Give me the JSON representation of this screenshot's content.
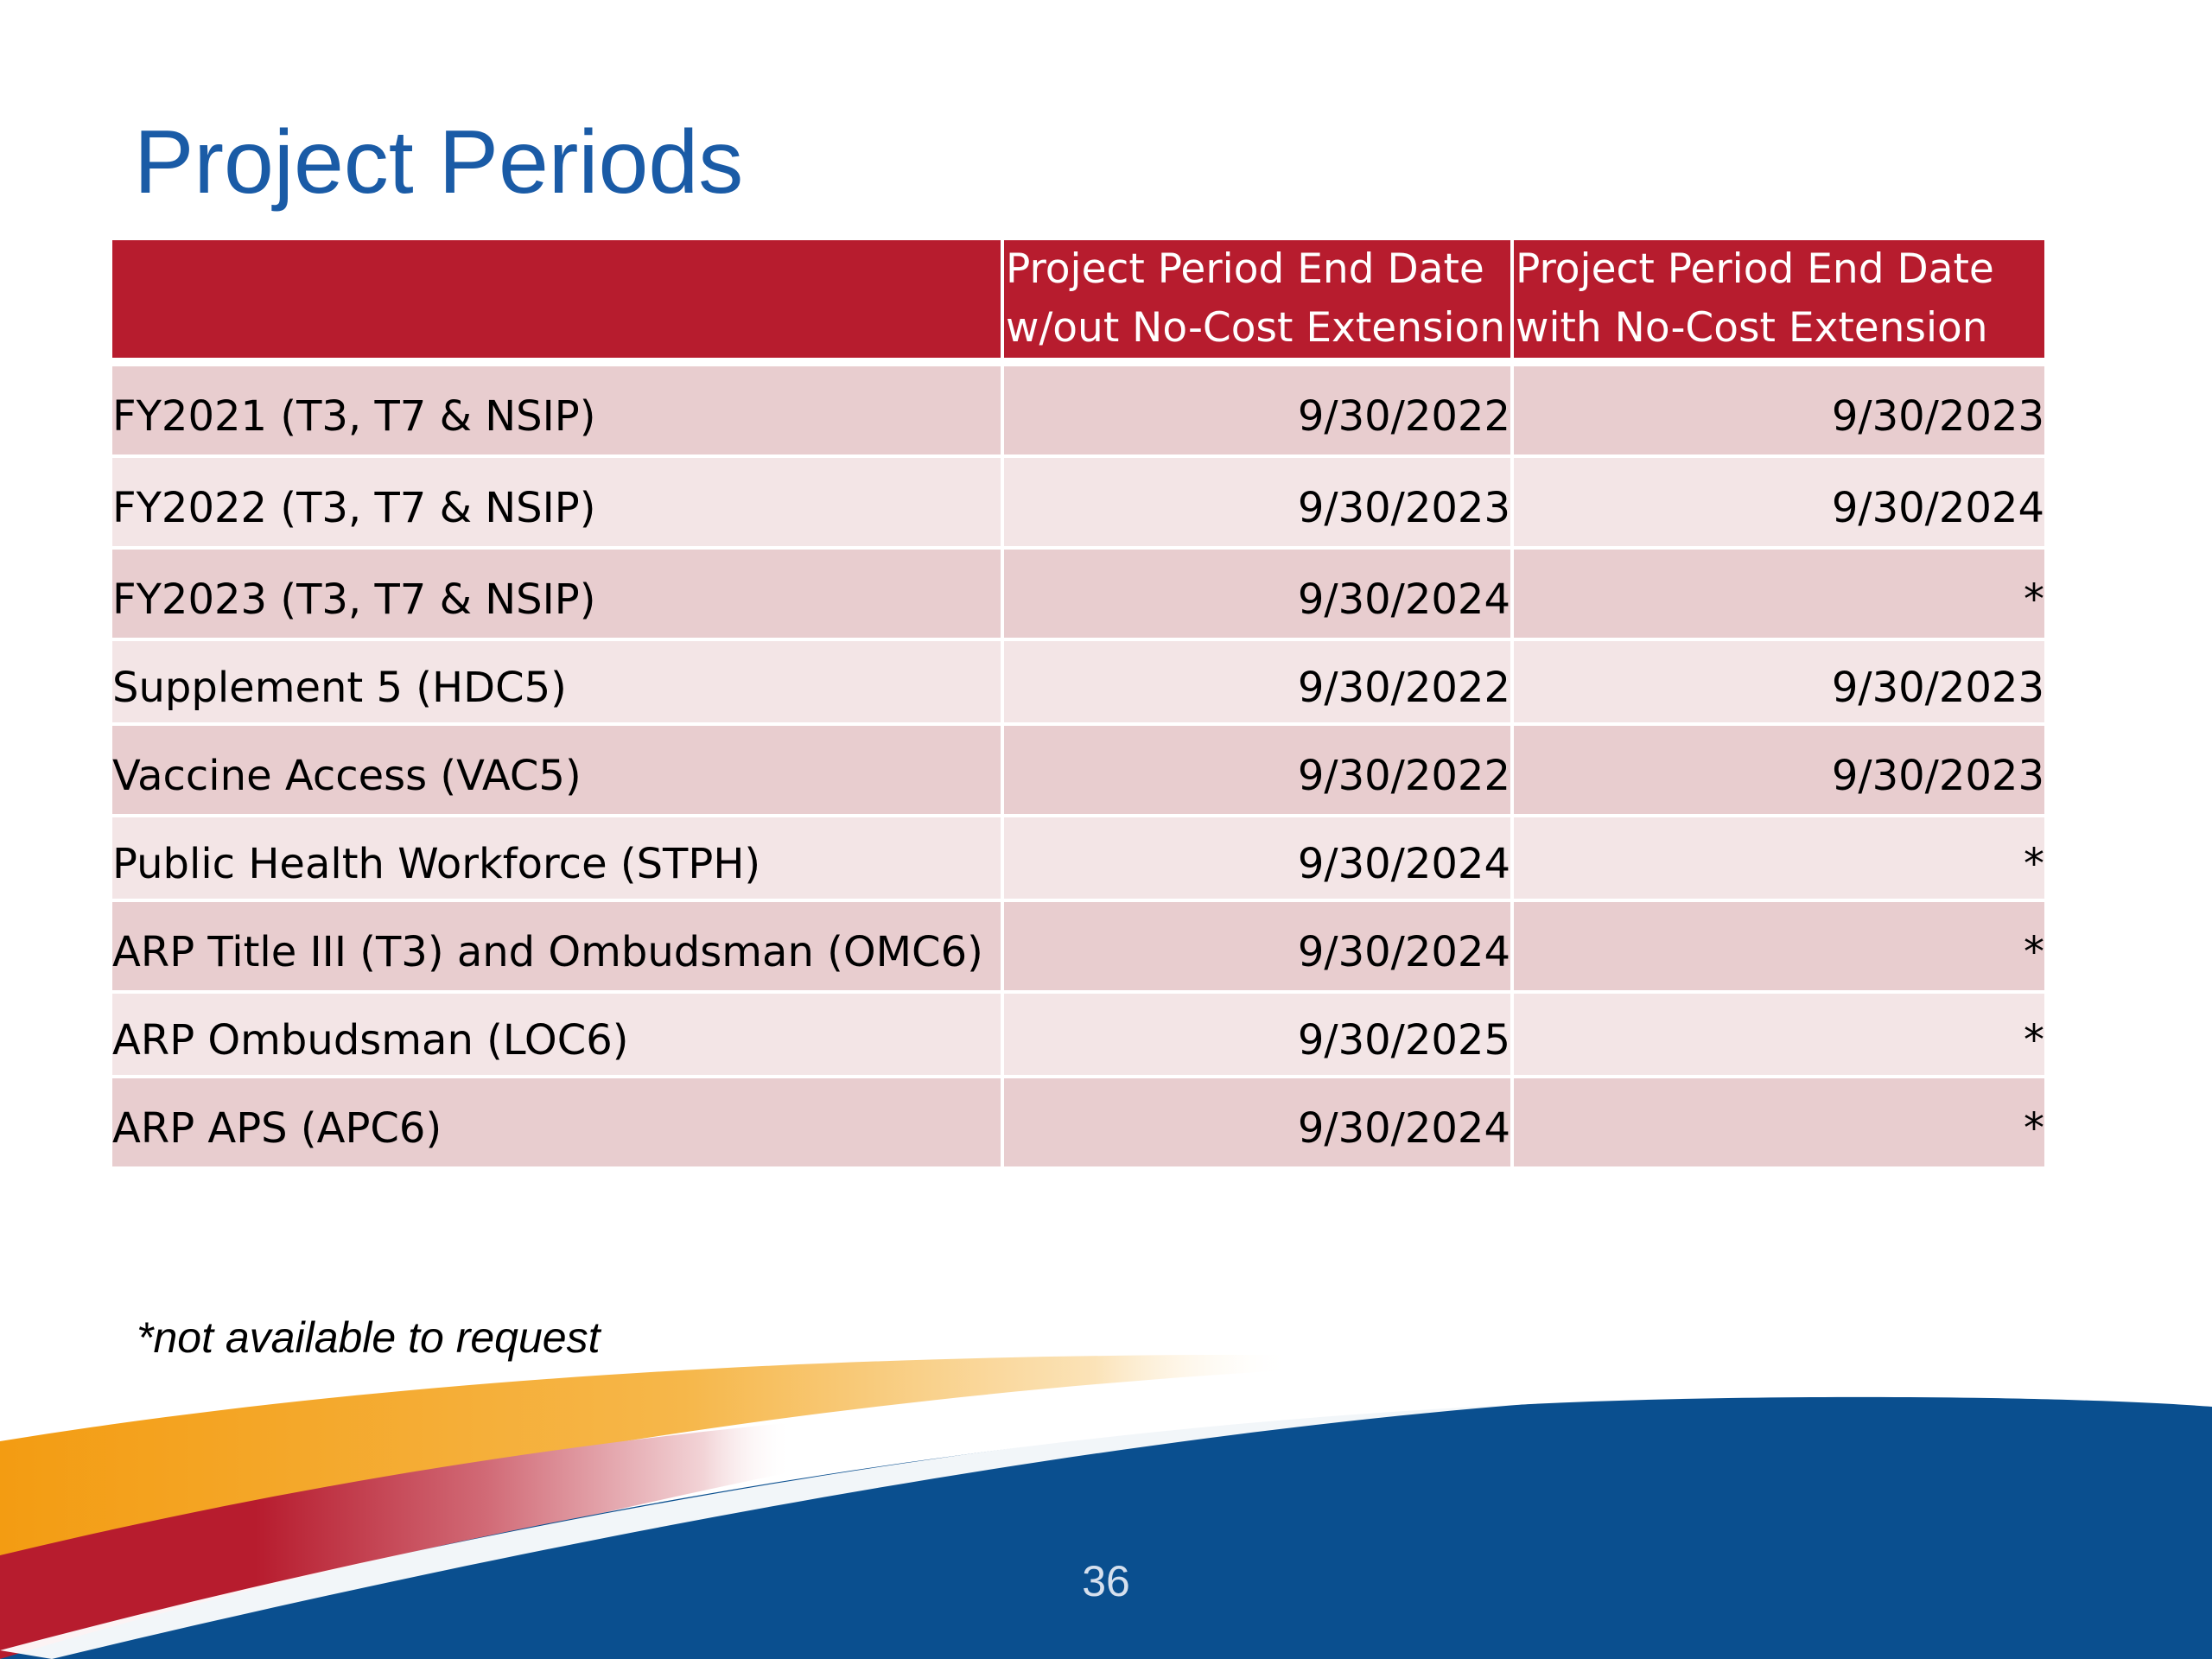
{
  "slide": {
    "title": "Project Periods",
    "footnote": "*not available to request",
    "page_number": "36"
  },
  "table": {
    "headers": {
      "col1": "",
      "col2_line1": "Project Period End Date",
      "col2_line2": "w/out No-Cost Extension",
      "col3_line1": "Project Period End Date",
      "col3_line2": "with No-Cost Extension"
    },
    "rows": [
      {
        "program": "FY2021 (T3, T7 & NSIP)",
        "end_without_nce": "9/30/2022",
        "end_with_nce": "9/30/2023"
      },
      {
        "program": "FY2022 (T3, T7 & NSIP)",
        "end_without_nce": "9/30/2023",
        "end_with_nce": "9/30/2024"
      },
      {
        "program": "FY2023 (T3, T7 & NSIP)",
        "end_without_nce": "9/30/2024",
        "end_with_nce": "*"
      },
      {
        "program": "Supplement 5 (HDC5)",
        "end_without_nce": "9/30/2022",
        "end_with_nce": "9/30/2023"
      },
      {
        "program": "Vaccine Access (VAC5)",
        "end_without_nce": "9/30/2022",
        "end_with_nce": "9/30/2023"
      },
      {
        "program": "Public Health Workforce (STPH)",
        "end_without_nce": "9/30/2024",
        "end_with_nce": "*"
      },
      {
        "program": "ARP Title III (T3) and Ombudsman (OMC6)",
        "end_without_nce": "9/30/2024",
        "end_with_nce": "*"
      },
      {
        "program": "ARP Ombudsman (LOC6)",
        "end_without_nce": "9/30/2025",
        "end_with_nce": "*"
      },
      {
        "program": "ARP APS (APC6)",
        "end_without_nce": "9/30/2024",
        "end_with_nce": "*"
      }
    ]
  },
  "colors": {
    "title": "#1a5ba6",
    "header_background": "#b71c2e",
    "row_dark": "#e8cdcf",
    "row_light": "#f3e5e6",
    "swoosh_blue": "#0a4f8f",
    "swoosh_red": "#b71c2e",
    "swoosh_orange": "#f39c12"
  }
}
